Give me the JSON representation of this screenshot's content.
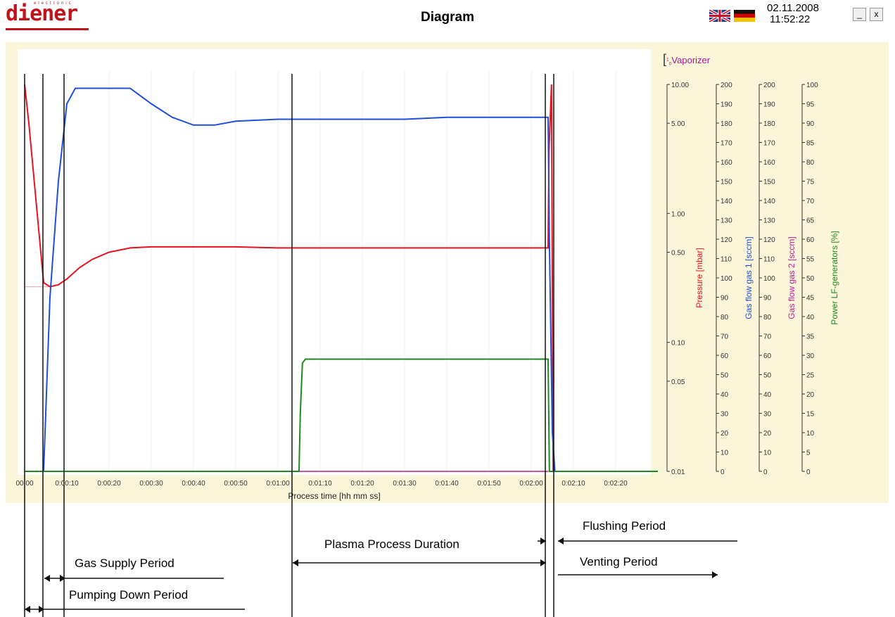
{
  "header": {
    "logo_text": "diener",
    "logo_subtext": "electronic",
    "title": "Diagram",
    "date": "02.11.2008",
    "time": "11:52:22",
    "minimize_label": "_",
    "close_label": "x",
    "flags": [
      "uk-flag",
      "germany-flag"
    ]
  },
  "vaporizer_label": "Vaporizer",
  "vaporizer_scale_top": "1",
  "vaporizer_scale_bottom": "0",
  "colors": {
    "pressure": "#e8121e",
    "gas1": "#1f4fd8",
    "gas2": "#c01890",
    "power": "#1f8a1f",
    "panel": "#fbf6d9"
  },
  "chart_data": {
    "type": "line",
    "xlabel": "Process time [hh mm ss]",
    "x_ticks": [
      "00:00",
      "0:00:10",
      "0:00:20",
      "0:00:30",
      "0:00:40",
      "0:00:50",
      "0:01:00",
      "0:01:10",
      "0:01:20",
      "0:01:30",
      "0:01:40",
      "0:01:50",
      "0:02:00",
      "0:02:10",
      "0:02:20"
    ],
    "xlim_seconds": [
      0,
      150
    ],
    "axes": [
      {
        "label": "Pressure [mbar]",
        "color": "#e8121e",
        "scale": "log",
        "ticks": [
          "10.00",
          "5.00",
          "1.00",
          "0.50",
          "0.10",
          "0.05",
          "0.01"
        ],
        "range": [
          0.01,
          10
        ]
      },
      {
        "label": "Gas flow gas 1 [sccm]",
        "color": "#1f4fd8",
        "scale": "linear",
        "range": [
          0,
          200
        ],
        "ticks": [
          "200",
          "190",
          "180",
          "170",
          "160",
          "150",
          "140",
          "130",
          "120",
          "110",
          "100",
          "90",
          "80",
          "70",
          "60",
          "50",
          "40",
          "30",
          "20",
          "10",
          "0"
        ]
      },
      {
        "label": "Gas flow gas 2 [sccm]",
        "color": "#c01890",
        "scale": "linear",
        "range": [
          0,
          200
        ],
        "ticks": [
          "200",
          "190",
          "180",
          "170",
          "160",
          "150",
          "140",
          "130",
          "120",
          "110",
          "100",
          "90",
          "80",
          "70",
          "60",
          "50",
          "40",
          "30",
          "20",
          "10",
          "0"
        ]
      },
      {
        "label": "Power LF-generators [%]",
        "color": "#1f8a1f",
        "scale": "linear",
        "range": [
          0,
          100
        ],
        "ticks": [
          "100",
          "95",
          "90",
          "85",
          "80",
          "75",
          "70",
          "65",
          "60",
          "55",
          "50",
          "45",
          "40",
          "35",
          "30",
          "25",
          "20",
          "15",
          "10",
          "5",
          "0"
        ]
      }
    ],
    "series": [
      {
        "name": "Pressure [mbar]",
        "axis": 0,
        "x": [
          0,
          1,
          4.5,
          6,
          8,
          10,
          13,
          16,
          20,
          25,
          30,
          40,
          50,
          60,
          70,
          80,
          90,
          100,
          110,
          120,
          124,
          124.2,
          124.8,
          125.2
        ],
        "y": [
          10,
          5,
          0.29,
          0.27,
          0.28,
          0.31,
          0.38,
          0.44,
          0.5,
          0.54,
          0.55,
          0.55,
          0.55,
          0.54,
          0.54,
          0.54,
          0.54,
          0.54,
          0.54,
          0.54,
          0.54,
          3,
          10,
          0.01
        ]
      },
      {
        "name": "Gas flow gas 1 [sccm]",
        "axis": 1,
        "x": [
          0,
          4.5,
          5,
          6,
          8,
          10,
          12,
          18,
          25,
          30,
          35,
          40,
          45,
          50,
          60,
          70,
          80,
          90,
          100,
          110,
          120,
          124,
          124.3,
          125,
          125.6,
          126,
          150
        ],
        "y": [
          0,
          0,
          30,
          90,
          150,
          190,
          198,
          198,
          198,
          190,
          183,
          179,
          179,
          181,
          182,
          182,
          182,
          182,
          183,
          183,
          183,
          183,
          120,
          20,
          0,
          0,
          0
        ]
      },
      {
        "name": "Gas flow gas 2 [sccm]",
        "axis": 2,
        "x": [
          0,
          124
        ],
        "y": [
          0,
          0
        ]
      },
      {
        "name": "Power LF-generators [%]",
        "axis": 3,
        "x": [
          0,
          65,
          65.3,
          65.8,
          66.5,
          70,
          80,
          90,
          100,
          110,
          120,
          124,
          124.3,
          150
        ],
        "y": [
          0,
          0,
          15,
          28,
          29,
          29,
          29,
          29,
          29,
          29,
          29,
          29,
          0,
          0
        ]
      }
    ],
    "markers_seconds": [
      0,
      5,
      10,
      64,
      124,
      126
    ]
  },
  "annotations": [
    {
      "id": "flushing",
      "label": "Flushing Period"
    },
    {
      "id": "plasma",
      "label": "Plasma Process Duration"
    },
    {
      "id": "venting",
      "label": "Venting Period"
    },
    {
      "id": "gas-supply",
      "label": "Gas Supply Period"
    },
    {
      "id": "pumping",
      "label": "Pumping Down Period"
    }
  ]
}
